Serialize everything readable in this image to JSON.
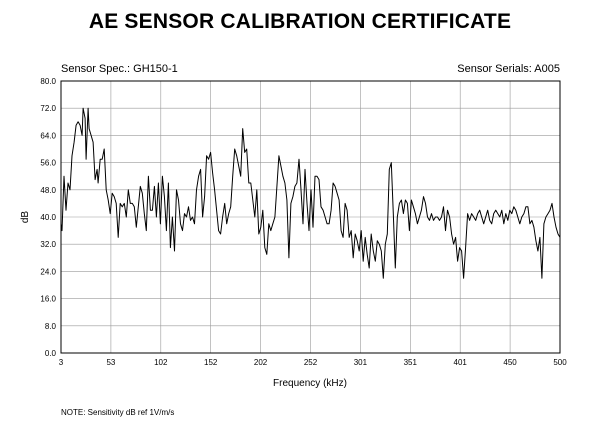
{
  "header": {
    "title": "AE SENSOR CALIBRATION CERTIFICATE",
    "spec": "Sensor Spec.: GH150-1",
    "serial": "Sensor Serials: A005"
  },
  "note": "NOTE:  Sensitivity dB ref 1V/m/s",
  "chart_data": {
    "type": "line",
    "title": "AE SENSOR CALIBRATION CERTIFICATE",
    "xlabel": "Frequency (kHz)",
    "ylabel": "dB",
    "xlim": [
      3,
      500
    ],
    "ylim": [
      0,
      80
    ],
    "grid": true,
    "legend": "none",
    "x_ticks": [
      "3",
      "53",
      "102",
      "152",
      "202",
      "252",
      "301",
      "351",
      "401",
      "450",
      "500"
    ],
    "y_ticks": [
      "0.0",
      "8.0",
      "16.0",
      "24.0",
      "32.0",
      "40.0",
      "48.0",
      "56.0",
      "64.0",
      "72.0",
      "80.0"
    ],
    "series": [
      {
        "color": "#000000",
        "points": [
          [
            3,
            38
          ],
          [
            4,
            36
          ],
          [
            5,
            44
          ],
          [
            6,
            52
          ],
          [
            8,
            42
          ],
          [
            10,
            50
          ],
          [
            12,
            48
          ],
          [
            14,
            58
          ],
          [
            16,
            62
          ],
          [
            18,
            67
          ],
          [
            20,
            68
          ],
          [
            22,
            67
          ],
          [
            24,
            64
          ],
          [
            25,
            72
          ],
          [
            27,
            69
          ],
          [
            28,
            57
          ],
          [
            30,
            72
          ],
          [
            31,
            66
          ],
          [
            33,
            64
          ],
          [
            35,
            62
          ],
          [
            37,
            51
          ],
          [
            39,
            54
          ],
          [
            40,
            50
          ],
          [
            42,
            57
          ],
          [
            44,
            57
          ],
          [
            46,
            60
          ],
          [
            48,
            48
          ],
          [
            50,
            45
          ],
          [
            52,
            41
          ],
          [
            54,
            47
          ],
          [
            56,
            46
          ],
          [
            58,
            44
          ],
          [
            60,
            34
          ],
          [
            62,
            44
          ],
          [
            64,
            43
          ],
          [
            66,
            44
          ],
          [
            68,
            40
          ],
          [
            70,
            48
          ],
          [
            72,
            44
          ],
          [
            74,
            44
          ],
          [
            76,
            43
          ],
          [
            78,
            37
          ],
          [
            80,
            43
          ],
          [
            82,
            49
          ],
          [
            84,
            47
          ],
          [
            86,
            41
          ],
          [
            88,
            36
          ],
          [
            90,
            52
          ],
          [
            92,
            42
          ],
          [
            94,
            42
          ],
          [
            96,
            49
          ],
          [
            98,
            40
          ],
          [
            100,
            50
          ],
          [
            102,
            38
          ],
          [
            104,
            52
          ],
          [
            106,
            46
          ],
          [
            108,
            36
          ],
          [
            110,
            50
          ],
          [
            112,
            31
          ],
          [
            114,
            40
          ],
          [
            116,
            30
          ],
          [
            118,
            48
          ],
          [
            120,
            45
          ],
          [
            122,
            38
          ],
          [
            124,
            36
          ],
          [
            126,
            41
          ],
          [
            128,
            40
          ],
          [
            130,
            43
          ],
          [
            132,
            39
          ],
          [
            134,
            40
          ],
          [
            136,
            38
          ],
          [
            138,
            48
          ],
          [
            140,
            52
          ],
          [
            142,
            54
          ],
          [
            144,
            40
          ],
          [
            146,
            46
          ],
          [
            148,
            58
          ],
          [
            150,
            57
          ],
          [
            152,
            59
          ],
          [
            154,
            53
          ],
          [
            156,
            48
          ],
          [
            158,
            42
          ],
          [
            160,
            36
          ],
          [
            162,
            35
          ],
          [
            164,
            40
          ],
          [
            166,
            44
          ],
          [
            168,
            38
          ],
          [
            170,
            41
          ],
          [
            172,
            43
          ],
          [
            174,
            52
          ],
          [
            176,
            60
          ],
          [
            178,
            58
          ],
          [
            180,
            55
          ],
          [
            182,
            52
          ],
          [
            184,
            66
          ],
          [
            186,
            59
          ],
          [
            188,
            60
          ],
          [
            190,
            50
          ],
          [
            192,
            50
          ],
          [
            194,
            45
          ],
          [
            196,
            40
          ],
          [
            198,
            48
          ],
          [
            200,
            35
          ],
          [
            202,
            37
          ],
          [
            204,
            42
          ],
          [
            206,
            31
          ],
          [
            208,
            29
          ],
          [
            210,
            38
          ],
          [
            212,
            36
          ],
          [
            214,
            38
          ],
          [
            216,
            40
          ],
          [
            218,
            49
          ],
          [
            220,
            58
          ],
          [
            222,
            55
          ],
          [
            224,
            52
          ],
          [
            226,
            50
          ],
          [
            228,
            45
          ],
          [
            230,
            28
          ],
          [
            232,
            44
          ],
          [
            234,
            46
          ],
          [
            236,
            49
          ],
          [
            238,
            50
          ],
          [
            240,
            57
          ],
          [
            242,
            48
          ],
          [
            244,
            38
          ],
          [
            246,
            54
          ],
          [
            248,
            44
          ],
          [
            250,
            36
          ],
          [
            252,
            48
          ],
          [
            254,
            37
          ],
          [
            256,
            52
          ],
          [
            258,
            52
          ],
          [
            260,
            51
          ],
          [
            262,
            43
          ],
          [
            264,
            42
          ],
          [
            266,
            40
          ],
          [
            268,
            38
          ],
          [
            270,
            38
          ],
          [
            272,
            42
          ],
          [
            274,
            50
          ],
          [
            276,
            49
          ],
          [
            278,
            47
          ],
          [
            280,
            45
          ],
          [
            282,
            36
          ],
          [
            284,
            34
          ],
          [
            286,
            44
          ],
          [
            288,
            42
          ],
          [
            290,
            34
          ],
          [
            292,
            36
          ],
          [
            294,
            28
          ],
          [
            296,
            35
          ],
          [
            298,
            33
          ],
          [
            300,
            30
          ],
          [
            302,
            36
          ],
          [
            304,
            27
          ],
          [
            306,
            34
          ],
          [
            308,
            29
          ],
          [
            310,
            25
          ],
          [
            312,
            35
          ],
          [
            314,
            30
          ],
          [
            316,
            27
          ],
          [
            318,
            33
          ],
          [
            320,
            32
          ],
          [
            322,
            30
          ],
          [
            324,
            22
          ],
          [
            326,
            32
          ],
          [
            328,
            35
          ],
          [
            330,
            54
          ],
          [
            332,
            56
          ],
          [
            334,
            41
          ],
          [
            336,
            25
          ],
          [
            338,
            40
          ],
          [
            340,
            44
          ],
          [
            342,
            45
          ],
          [
            344,
            41
          ],
          [
            346,
            45
          ],
          [
            348,
            44
          ],
          [
            350,
            36
          ],
          [
            352,
            45
          ],
          [
            354,
            43
          ],
          [
            356,
            41
          ],
          [
            358,
            38
          ],
          [
            360,
            40
          ],
          [
            362,
            42
          ],
          [
            364,
            46
          ],
          [
            366,
            44
          ],
          [
            368,
            40
          ],
          [
            370,
            39
          ],
          [
            372,
            41
          ],
          [
            374,
            39
          ],
          [
            376,
            40
          ],
          [
            378,
            40
          ],
          [
            380,
            39
          ],
          [
            382,
            40
          ],
          [
            384,
            43
          ],
          [
            386,
            36
          ],
          [
            388,
            42
          ],
          [
            390,
            40
          ],
          [
            392,
            35
          ],
          [
            394,
            32
          ],
          [
            396,
            34
          ],
          [
            398,
            27
          ],
          [
            400,
            31
          ],
          [
            402,
            30
          ],
          [
            404,
            22
          ],
          [
            406,
            31
          ],
          [
            408,
            41
          ],
          [
            410,
            39
          ],
          [
            412,
            41
          ],
          [
            414,
            40
          ],
          [
            416,
            39
          ],
          [
            418,
            41
          ],
          [
            420,
            42
          ],
          [
            422,
            40
          ],
          [
            424,
            38
          ],
          [
            426,
            40
          ],
          [
            428,
            42
          ],
          [
            430,
            39
          ],
          [
            432,
            38
          ],
          [
            434,
            41
          ],
          [
            436,
            42
          ],
          [
            438,
            41
          ],
          [
            440,
            40
          ],
          [
            442,
            42
          ],
          [
            444,
            38
          ],
          [
            446,
            41
          ],
          [
            448,
            39
          ],
          [
            450,
            42
          ],
          [
            452,
            41
          ],
          [
            454,
            43
          ],
          [
            456,
            42
          ],
          [
            458,
            40
          ],
          [
            460,
            38
          ],
          [
            462,
            40
          ],
          [
            464,
            41
          ],
          [
            466,
            43
          ],
          [
            468,
            43
          ],
          [
            470,
            38
          ],
          [
            472,
            39
          ],
          [
            474,
            37
          ],
          [
            476,
            33
          ],
          [
            478,
            30
          ],
          [
            480,
            34
          ],
          [
            482,
            22
          ],
          [
            484,
            38
          ],
          [
            486,
            40
          ],
          [
            488,
            41
          ],
          [
            490,
            42
          ],
          [
            492,
            44
          ],
          [
            494,
            40
          ],
          [
            496,
            37
          ],
          [
            498,
            35
          ],
          [
            500,
            34
          ]
        ]
      }
    ]
  }
}
